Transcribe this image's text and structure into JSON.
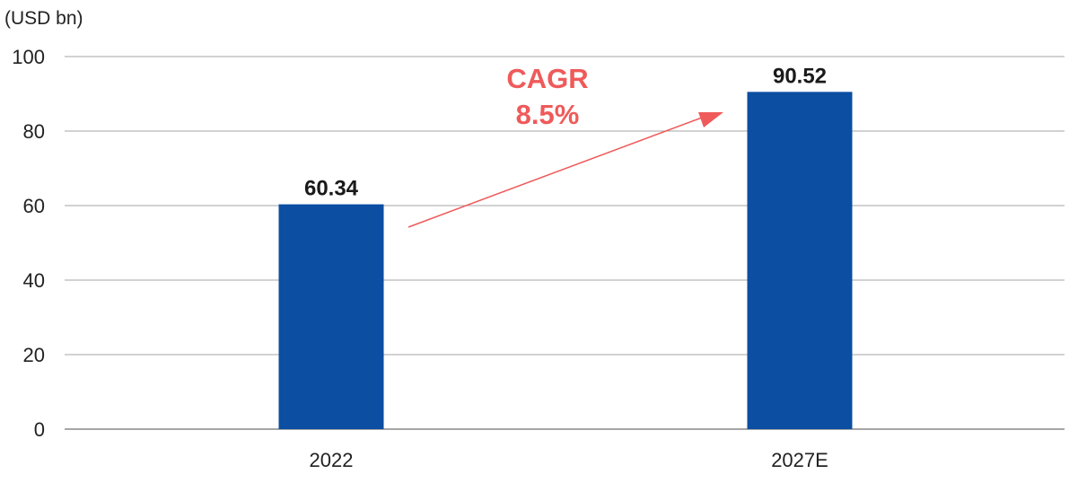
{
  "chart_data": {
    "type": "bar",
    "unit_label": "(USD bn)",
    "categories": [
      "2022",
      "2027E"
    ],
    "values": [
      60.34,
      90.52
    ],
    "data_labels": [
      "60.34",
      "90.52"
    ],
    "ylim": [
      0,
      100
    ],
    "yticks": [
      "0",
      "20",
      "40",
      "60",
      "80",
      "100"
    ],
    "grid": true,
    "bar_color": "#0b4ea2",
    "annotation": {
      "line1": "CAGR",
      "line2": "8.5%",
      "color": "#ef5a5a"
    }
  }
}
